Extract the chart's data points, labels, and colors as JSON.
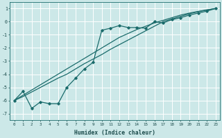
{
  "xlabel": "Humidex (Indice chaleur)",
  "background_color": "#cce8e8",
  "grid_color": "#b8d8d8",
  "line_color": "#1a6b6b",
  "xlim": [
    -0.5,
    23.5
  ],
  "ylim": [
    -7.5,
    1.5
  ],
  "yticks": [
    -7,
    -6,
    -5,
    -4,
    -3,
    -2,
    -1,
    0,
    1
  ],
  "xticks": [
    0,
    1,
    2,
    3,
    4,
    5,
    6,
    7,
    8,
    9,
    10,
    11,
    12,
    13,
    14,
    15,
    16,
    17,
    18,
    19,
    20,
    21,
    22,
    23
  ],
  "x_data": [
    0,
    1,
    2,
    3,
    4,
    5,
    6,
    7,
    8,
    9,
    10,
    11,
    12,
    13,
    14,
    15,
    16,
    17,
    18,
    19,
    20,
    21,
    22,
    23
  ],
  "y_scatter": [
    -6.0,
    -5.3,
    -6.6,
    -6.1,
    -6.25,
    -6.25,
    -5.0,
    -4.3,
    -3.6,
    -3.1,
    -0.65,
    -0.5,
    -0.3,
    -0.45,
    -0.45,
    -0.5,
    0.0,
    -0.1,
    0.15,
    0.3,
    0.5,
    0.65,
    0.8,
    1.0
  ],
  "y_line1": [
    -6.0,
    -5.7,
    -5.35,
    -5.0,
    -4.65,
    -4.3,
    -4.0,
    -3.6,
    -3.2,
    -2.85,
    -2.5,
    -2.1,
    -1.75,
    -1.4,
    -1.05,
    -0.7,
    -0.35,
    0.0,
    0.2,
    0.4,
    0.6,
    0.75,
    0.88,
    1.0
  ],
  "y_line2": [
    -6.0,
    -5.6,
    -5.2,
    -4.8,
    -4.4,
    -4.0,
    -3.6,
    -3.2,
    -2.8,
    -2.4,
    -2.0,
    -1.6,
    -1.2,
    -0.9,
    -0.6,
    -0.35,
    -0.1,
    0.1,
    0.3,
    0.5,
    0.65,
    0.78,
    0.9,
    1.0
  ]
}
